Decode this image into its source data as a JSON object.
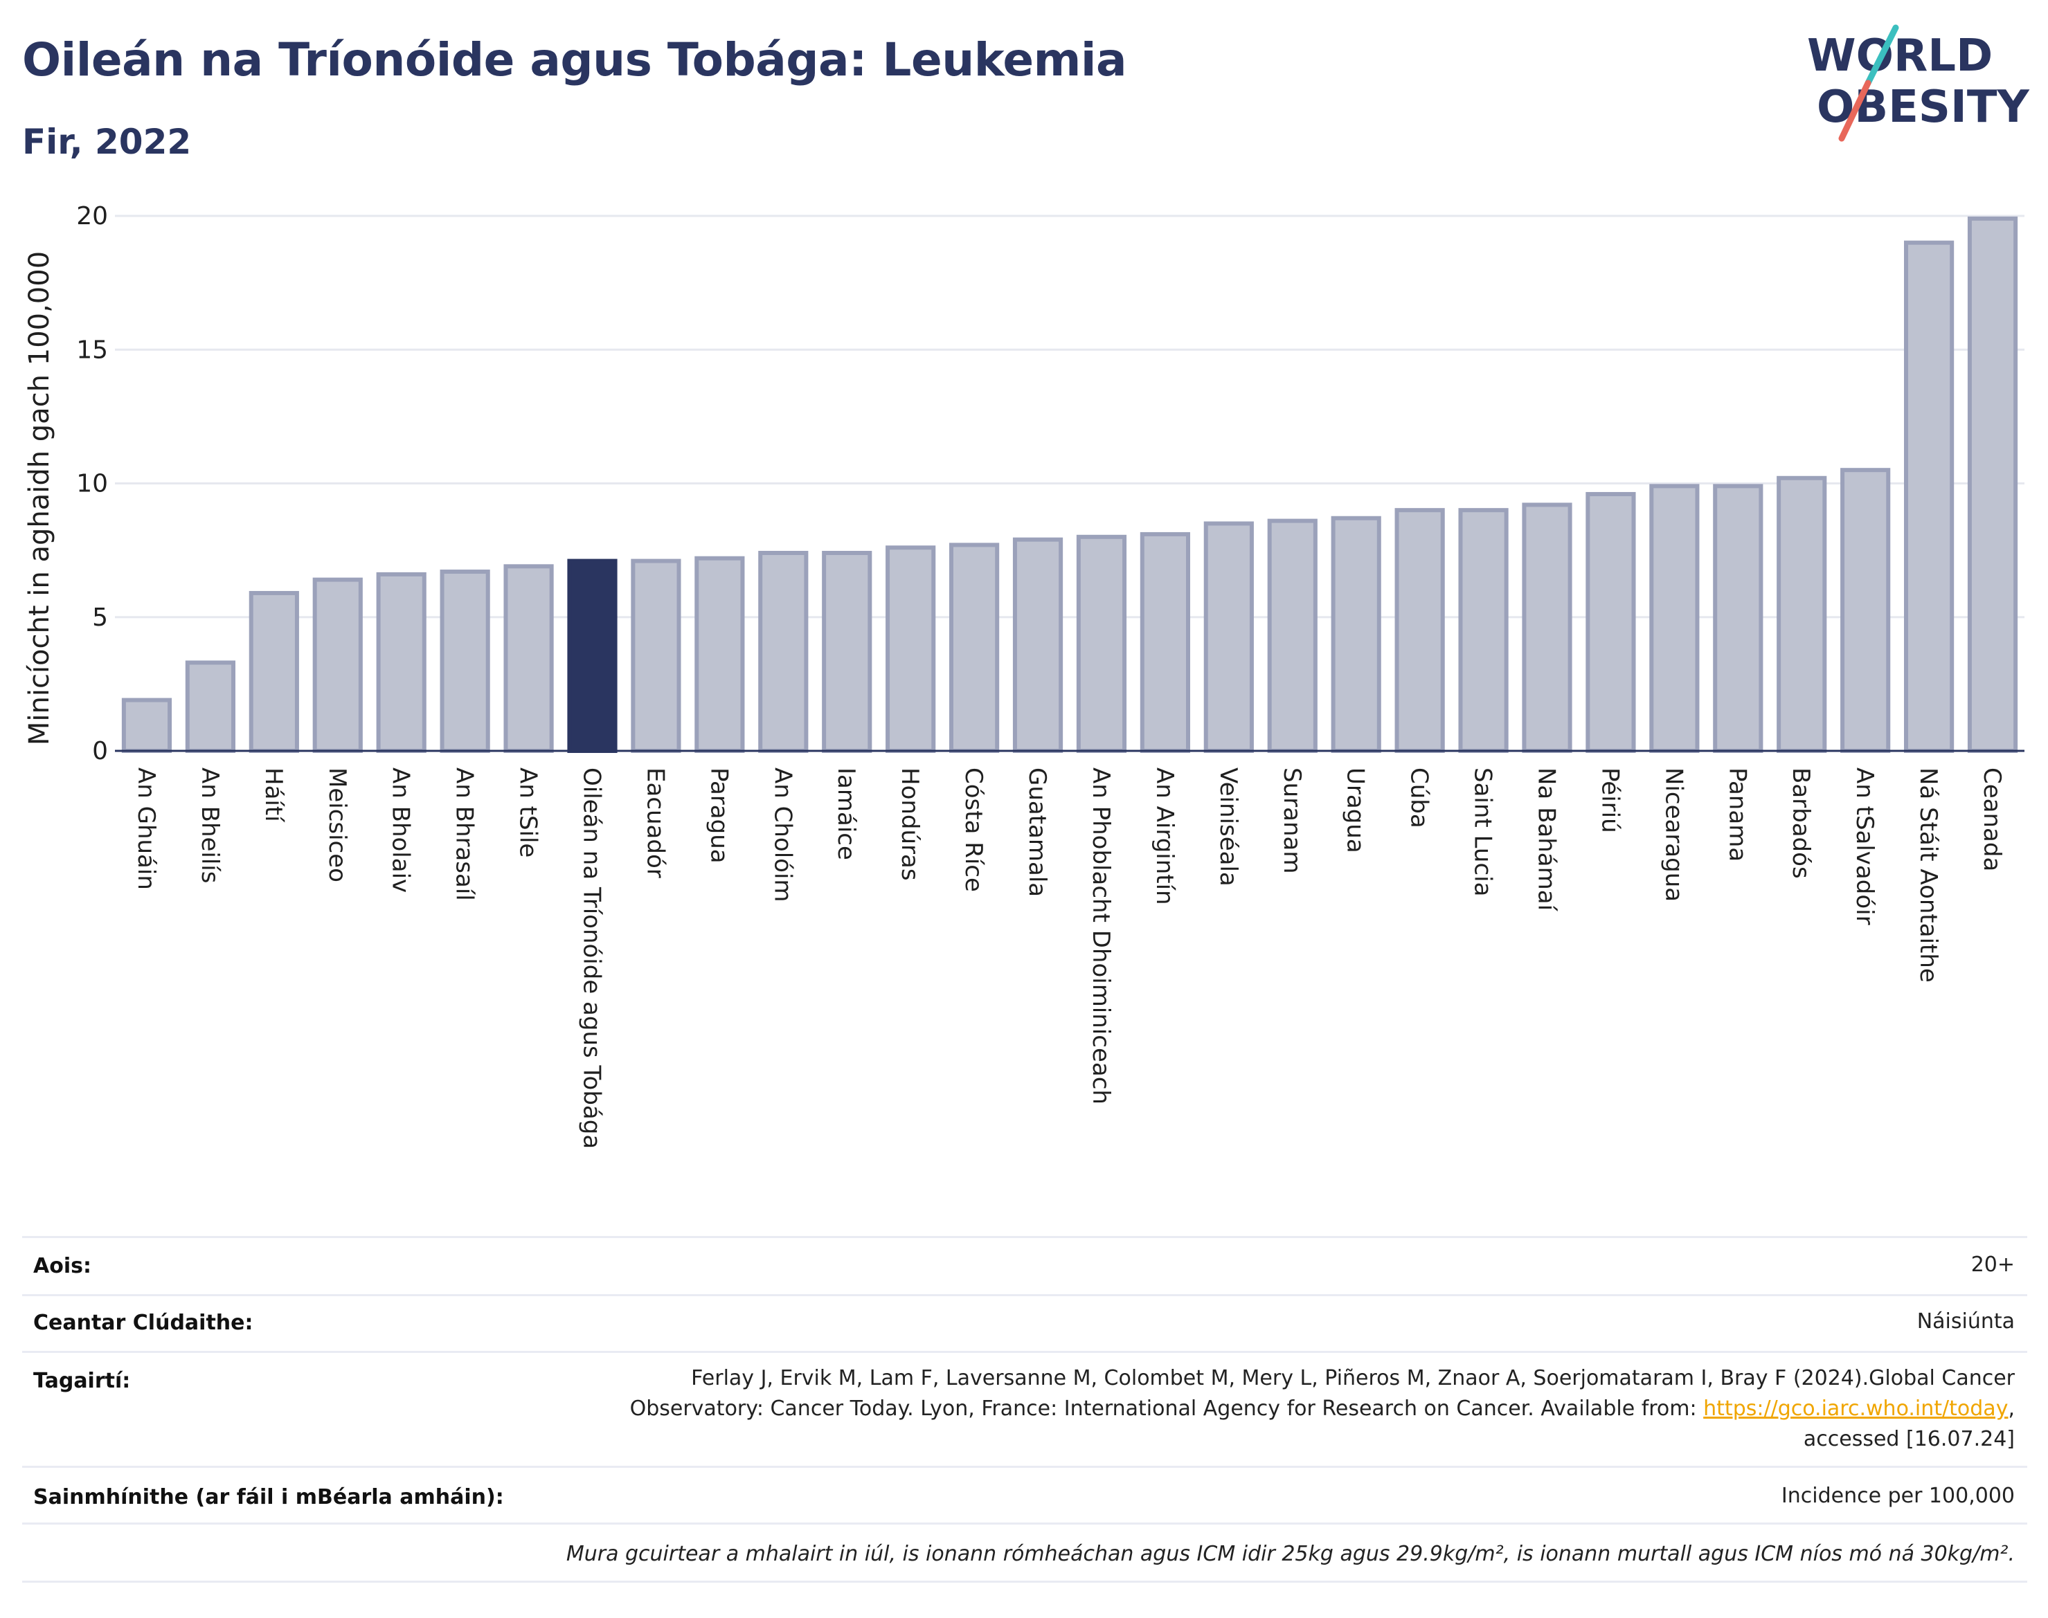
{
  "header": {
    "title": "Oileán na Tríonóide agus Tobága: Leukemia",
    "subtitle": "Fir, 2022"
  },
  "logo": {
    "line1": "WORLD",
    "line2": "OBESITY"
  },
  "colors": {
    "highlight": "#2a3560",
    "bar_fill": "#bec2d0",
    "bar_stroke": "#9ba1ba",
    "text": "#1f1f1f",
    "grid": "#e6e8ef",
    "link": "#f0a500",
    "logo_accent_teal": "#3bbfbf",
    "logo_accent_red": "#e8675a"
  },
  "chart_data": {
    "type": "bar",
    "title": "Oileán na Tríonóide agus Tobága: Leukemia",
    "ylabel": "Minicíocht in aghaidh gach 100,000",
    "xlabel": "",
    "ylim": [
      0,
      20
    ],
    "yticks": [
      0,
      5,
      10,
      15,
      20
    ],
    "grid": true,
    "highlight_category": "Oileán na Tríonóide agus Tobága",
    "categories": [
      "An Ghuáin",
      "An Bheilís",
      "Háítí",
      "Meicsiceo",
      "An Bholaiv",
      "An Bhrasaíl",
      "An tSile",
      "Oileán na Tríonóide agus Tobága",
      "Eacuadór",
      "Paragua",
      "An Cholóim",
      "Iamáice",
      "Hondúras",
      "Cósta Ríce",
      "Guatamala",
      "An Phoblacht Dhoiminiceach",
      "An Airgintín",
      "Veiniséala",
      "Suranam",
      "Uragua",
      "Cúba",
      "Saint Lucia",
      "Na Bahámaí",
      "Péiriú",
      "Nicearagua",
      "Panama",
      "Barbadós",
      "An tSalvadóir",
      "Ná Stáit Aontaithe",
      "Ceanada"
    ],
    "values": [
      1.9,
      3.3,
      5.9,
      6.4,
      6.6,
      6.7,
      6.9,
      7.1,
      7.1,
      7.2,
      7.4,
      7.4,
      7.6,
      7.7,
      7.9,
      8.0,
      8.1,
      8.5,
      8.6,
      8.7,
      9.0,
      9.0,
      9.2,
      9.6,
      9.9,
      9.9,
      10.2,
      10.5,
      19.0,
      19.9
    ]
  },
  "meta": {
    "age_label": "Aois:",
    "age_value": "20+",
    "coverage_label": "Ceantar Clúdaithe:",
    "coverage_value": "Náisiúnta",
    "refs_label": "Tagairtí:",
    "refs_line1": "Ferlay J, Ervik M, Lam F, Laversanne M, Colombet M, Mery L, Piñeros M, Znaor A, Soerjomataram I, Bray F (2024).Global Cancer",
    "refs_line2_pre": "Observatory: Cancer Today. Lyon, France: International Agency for Research on Cancer. Available from: ",
    "refs_link": "https://gco.iarc.who.int/today",
    "refs_line2_post": ",",
    "refs_line3": "accessed [16.07.24]",
    "defs_label": "Sainmhínithe (ar fáil i mBéarla amháin):",
    "defs_value": "Incidence per 100,000",
    "note": "Mura gcuirtear a mhalairt in iúl, is ionann rómheáchan agus ICM idir 25kg agus 29.9kg/m², is ionann murtall agus ICM níos mó ná 30kg/m²."
  }
}
